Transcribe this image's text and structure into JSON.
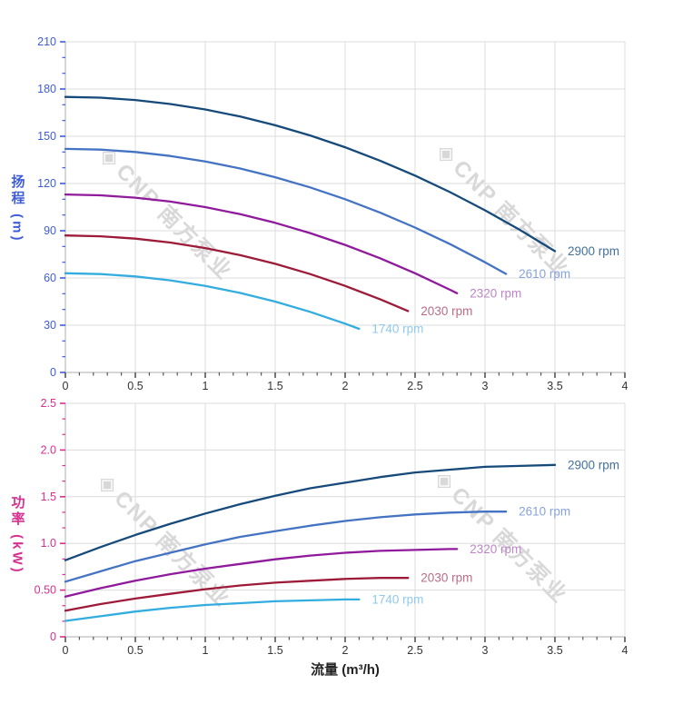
{
  "watermark": {
    "logo_glyph": "◈",
    "text": "CNP 南方泵业",
    "color": "#d8d8d8"
  },
  "x_axis": {
    "title": "流量 (m³/h)",
    "tick_labels": [
      "0",
      "0.5",
      "1",
      "1.5",
      "2",
      "2.5",
      "3",
      "3.5",
      "4"
    ],
    "range": [
      0,
      4
    ],
    "tick_color": "#555555",
    "label_color": "#333333"
  },
  "head_chart": {
    "y_axis": {
      "title": "扬程 (m)",
      "tick_labels": [
        "0",
        "30",
        "60",
        "90",
        "120",
        "150",
        "180",
        "210"
      ],
      "range": [
        0,
        210
      ],
      "color": "#3f5dd8"
    }
  },
  "power_chart": {
    "y_axis": {
      "title": "功率 (kW)",
      "tick_labels": [
        "0",
        "0.50",
        "1.0",
        "1.5",
        "2.0",
        "2.5"
      ],
      "range": [
        0,
        2.5
      ],
      "color": "#d73090"
    }
  },
  "chart_data": [
    {
      "type": "line",
      "title": "扬程-流量 curves",
      "xlabel": "流量 (m³/h)",
      "ylabel": "扬程 (m)",
      "xlim": [
        0,
        4
      ],
      "ylim": [
        0,
        210
      ],
      "grid": true,
      "legend_position": "at-line-end",
      "series": [
        {
          "name": "2900 rpm",
          "color": "#164a7b",
          "label_color": "#44719c",
          "points": [
            [
              0,
              175
            ],
            [
              0.25,
              174.5
            ],
            [
              0.5,
              173
            ],
            [
              0.75,
              170.5
            ],
            [
              1,
              167
            ],
            [
              1.25,
              162.5
            ],
            [
              1.5,
              157
            ],
            [
              1.75,
              150.5
            ],
            [
              2,
              143
            ],
            [
              2.25,
              134.5
            ],
            [
              2.5,
              125
            ],
            [
              2.75,
              114.5
            ],
            [
              3,
              103
            ],
            [
              3.25,
              90.5
            ],
            [
              3.5,
              77
            ]
          ]
        },
        {
          "name": "2610 rpm",
          "color": "#4573c4",
          "label_color": "#87a3dc",
          "points": [
            [
              0,
              142
            ],
            [
              0.25,
              141.5
            ],
            [
              0.5,
              140
            ],
            [
              0.75,
              137.5
            ],
            [
              1,
              134
            ],
            [
              1.25,
              129.5
            ],
            [
              1.5,
              124
            ],
            [
              1.75,
              117.5
            ],
            [
              2,
              110
            ],
            [
              2.25,
              101.5
            ],
            [
              2.5,
              92
            ],
            [
              2.75,
              81.5
            ],
            [
              3,
              70
            ],
            [
              3.15,
              62.6
            ]
          ]
        },
        {
          "name": "2320 rpm",
          "color": "#8f1a9c",
          "label_color": "#bd85c6",
          "points": [
            [
              0,
              113
            ],
            [
              0.25,
              112.5
            ],
            [
              0.5,
              111
            ],
            [
              0.75,
              108.5
            ],
            [
              1,
              105
            ],
            [
              1.25,
              100.5
            ],
            [
              1.5,
              95
            ],
            [
              1.75,
              88.5
            ],
            [
              2,
              81
            ],
            [
              2.25,
              72.5
            ],
            [
              2.5,
              63
            ],
            [
              2.75,
              52.5
            ],
            [
              2.8,
              50.3
            ]
          ]
        },
        {
          "name": "2030 rpm",
          "color": "#9d1b39",
          "label_color": "#bb6c83",
          "points": [
            [
              0,
              87
            ],
            [
              0.25,
              86.5
            ],
            [
              0.5,
              85
            ],
            [
              0.75,
              82.5
            ],
            [
              1,
              79
            ],
            [
              1.25,
              74.5
            ],
            [
              1.5,
              69
            ],
            [
              1.75,
              62.5
            ],
            [
              2,
              55
            ],
            [
              2.25,
              46.5
            ],
            [
              2.45,
              39
            ]
          ]
        },
        {
          "name": "1740 rpm",
          "color": "#33ace0",
          "label_color": "#8fcaec",
          "points": [
            [
              0,
              63
            ],
            [
              0.25,
              62.5
            ],
            [
              0.5,
              61
            ],
            [
              0.75,
              58.5
            ],
            [
              1,
              55
            ],
            [
              1.25,
              50.5
            ],
            [
              1.5,
              45
            ],
            [
              1.75,
              38.5
            ],
            [
              2,
              31
            ],
            [
              2.1,
              27.7
            ]
          ]
        }
      ]
    },
    {
      "type": "line",
      "title": "功率-流量 curves",
      "xlabel": "流量 (m³/h)",
      "ylabel": "功率 (kW)",
      "xlim": [
        0,
        4
      ],
      "ylim": [
        0,
        2.5
      ],
      "grid": true,
      "legend_position": "at-line-end",
      "series": [
        {
          "name": "2900 rpm",
          "color": "#164a7b",
          "label_color": "#44719c",
          "points": [
            [
              0,
              0.82
            ],
            [
              0.25,
              0.96
            ],
            [
              0.5,
              1.09
            ],
            [
              0.75,
              1.21
            ],
            [
              1,
              1.32
            ],
            [
              1.25,
              1.42
            ],
            [
              1.5,
              1.51
            ],
            [
              1.75,
              1.59
            ],
            [
              2,
              1.65
            ],
            [
              2.25,
              1.71
            ],
            [
              2.5,
              1.76
            ],
            [
              2.75,
              1.79
            ],
            [
              3,
              1.82
            ],
            [
              3.25,
              1.83
            ],
            [
              3.5,
              1.84
            ]
          ]
        },
        {
          "name": "2610 rpm",
          "color": "#4573c4",
          "label_color": "#87a3dc",
          "points": [
            [
              0,
              0.59
            ],
            [
              0.25,
              0.7
            ],
            [
              0.5,
              0.81
            ],
            [
              0.75,
              0.9
            ],
            [
              1,
              0.99
            ],
            [
              1.25,
              1.07
            ],
            [
              1.5,
              1.13
            ],
            [
              1.75,
              1.19
            ],
            [
              2,
              1.24
            ],
            [
              2.25,
              1.28
            ],
            [
              2.5,
              1.31
            ],
            [
              2.75,
              1.33
            ],
            [
              3,
              1.34
            ],
            [
              3.15,
              1.34
            ]
          ]
        },
        {
          "name": "2320 rpm",
          "color": "#8f1a9c",
          "label_color": "#bd85c6",
          "points": [
            [
              0,
              0.43
            ],
            [
              0.25,
              0.52
            ],
            [
              0.5,
              0.6
            ],
            [
              0.75,
              0.67
            ],
            [
              1,
              0.73
            ],
            [
              1.25,
              0.78
            ],
            [
              1.5,
              0.83
            ],
            [
              1.75,
              0.87
            ],
            [
              2,
              0.9
            ],
            [
              2.25,
              0.92
            ],
            [
              2.5,
              0.93
            ],
            [
              2.75,
              0.94
            ],
            [
              2.8,
              0.94
            ]
          ]
        },
        {
          "name": "2030 rpm",
          "color": "#9d1b39",
          "label_color": "#bb6c83",
          "points": [
            [
              0,
              0.28
            ],
            [
              0.25,
              0.35
            ],
            [
              0.5,
              0.41
            ],
            [
              0.75,
              0.46
            ],
            [
              1,
              0.51
            ],
            [
              1.25,
              0.55
            ],
            [
              1.5,
              0.58
            ],
            [
              1.75,
              0.6
            ],
            [
              2,
              0.62
            ],
            [
              2.25,
              0.63
            ],
            [
              2.45,
              0.63
            ]
          ]
        },
        {
          "name": "1740 rpm",
          "color": "#33ace0",
          "label_color": "#8fcaec",
          "points": [
            [
              0,
              0.17
            ],
            [
              0.25,
              0.22
            ],
            [
              0.5,
              0.27
            ],
            [
              0.75,
              0.31
            ],
            [
              1,
              0.34
            ],
            [
              1.25,
              0.36
            ],
            [
              1.5,
              0.38
            ],
            [
              1.75,
              0.39
            ],
            [
              2,
              0.4
            ],
            [
              2.1,
              0.4
            ]
          ]
        }
      ]
    }
  ]
}
